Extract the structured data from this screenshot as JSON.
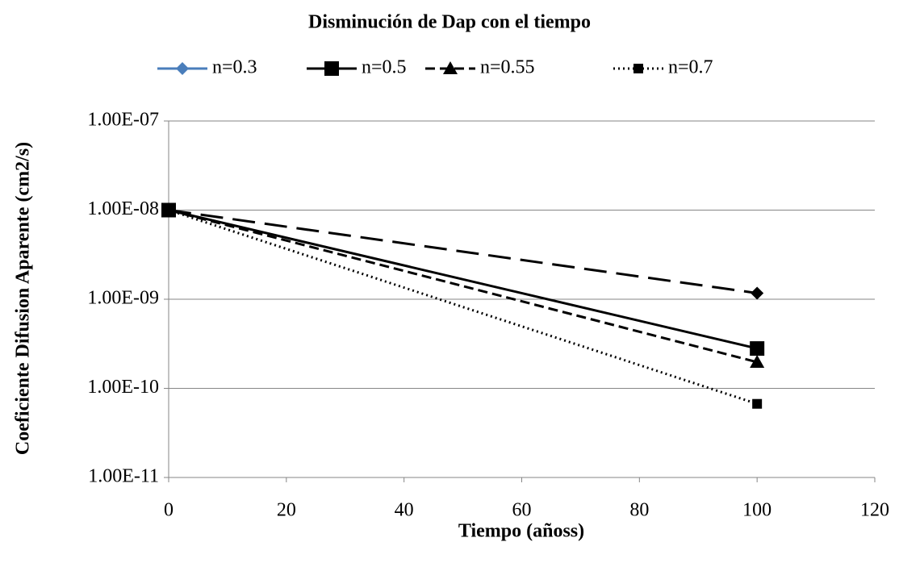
{
  "chart_data": {
    "type": "line",
    "title": "Disminución de Dap con el tiempo",
    "x_label": "Tiempo (añoss)",
    "y_label": "Coeficiente Difusion Aparente (cm2/s)",
    "x": [
      0,
      100
    ],
    "series": [
      {
        "name": "n=0.3",
        "color": "#000000",
        "legend_color": "#4a7ebb",
        "dash": "28 12",
        "legend_dash": "none",
        "marker": "diamond",
        "values": [
          1e-08,
          1.17e-09
        ]
      },
      {
        "name": "n=0.5",
        "color": "#000000",
        "dash": "none",
        "marker": "square",
        "values": [
          1e-08,
          2.8e-10
        ]
      },
      {
        "name": "n=0.55",
        "color": "#000000",
        "dash": "12 6",
        "marker": "triangle",
        "values": [
          1e-08,
          1.97e-10
        ]
      },
      {
        "name": "n=0.7",
        "color": "#000000",
        "dash": "2 4",
        "marker": "small-square",
        "values": [
          1e-08,
          6.7e-11
        ]
      }
    ],
    "xlim": [
      0,
      120
    ],
    "xticks": [
      0,
      20,
      40,
      60,
      80,
      100,
      120
    ],
    "ylim": [
      1e-11,
      1e-07
    ],
    "log_y": true,
    "yticks": [
      {
        "value": 1e-11,
        "label": "1.00E-11"
      },
      {
        "value": 1e-10,
        "label": "1.00E-10"
      },
      {
        "value": 1e-09,
        "label": "1.00E-09"
      },
      {
        "value": 1e-08,
        "label": "1.00E-08"
      },
      {
        "value": 1e-07,
        "label": "1.00E-07"
      }
    ],
    "grid": true,
    "legend": "top"
  }
}
